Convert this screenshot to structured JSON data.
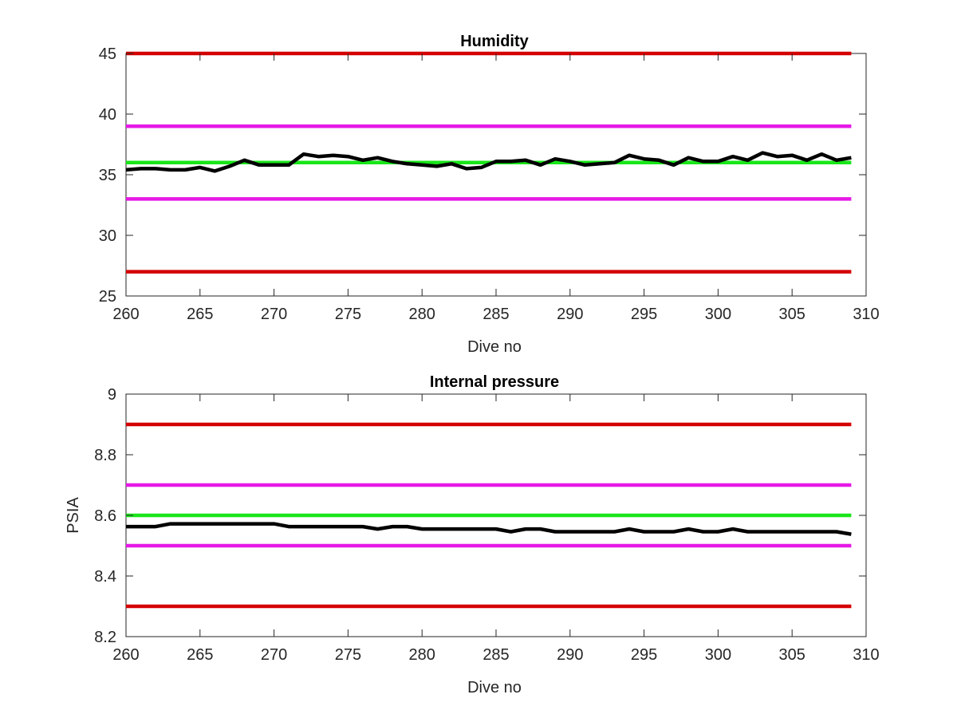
{
  "chart_data": [
    {
      "type": "line",
      "title": "Humidity",
      "xlabel": "Dive no",
      "ylabel": "",
      "xlim": [
        260,
        310
      ],
      "ylim": [
        25,
        45
      ],
      "xticks": [
        260,
        265,
        270,
        275,
        280,
        285,
        290,
        295,
        300,
        305,
        310
      ],
      "yticks": [
        25,
        30,
        35,
        40,
        45
      ],
      "grid": false,
      "legend": "none",
      "thresholds": [
        {
          "y": 45,
          "color": "#d40000"
        },
        {
          "y": 39,
          "color": "#e619e6"
        },
        {
          "y": 36,
          "color": "#19e619"
        },
        {
          "y": 33,
          "color": "#e619e6"
        },
        {
          "y": 27,
          "color": "#d40000"
        }
      ],
      "series": [
        {
          "color": "#000000",
          "x": [
            260,
            261,
            262,
            263,
            264,
            265,
            266,
            267,
            268,
            269,
            270,
            271,
            272,
            273,
            274,
            275,
            276,
            277,
            278,
            279,
            280,
            281,
            282,
            283,
            284,
            285,
            286,
            287,
            288,
            289,
            290,
            291,
            292,
            293,
            294,
            295,
            296,
            297,
            298,
            299,
            300,
            301,
            302,
            303,
            304,
            305,
            306,
            307,
            308,
            309
          ],
          "values": [
            35.4,
            35.5,
            35.5,
            35.4,
            35.4,
            35.6,
            35.3,
            35.7,
            36.2,
            35.8,
            35.8,
            35.8,
            36.7,
            36.5,
            36.6,
            36.5,
            36.2,
            36.4,
            36.1,
            35.9,
            35.8,
            35.7,
            35.9,
            35.5,
            35.6,
            36.1,
            36.1,
            36.2,
            35.8,
            36.3,
            36.1,
            35.8,
            35.9,
            36.0,
            36.6,
            36.3,
            36.2,
            35.8,
            36.4,
            36.1,
            36.1,
            36.5,
            36.2,
            36.8,
            36.5,
            36.6,
            36.2,
            36.7,
            36.2,
            36.4
          ]
        }
      ]
    },
    {
      "type": "line",
      "title": "Internal pressure",
      "xlabel": "Dive no",
      "ylabel": "PSIA",
      "xlim": [
        260,
        310
      ],
      "ylim": [
        8.2,
        9.0
      ],
      "xticks": [
        260,
        265,
        270,
        275,
        280,
        285,
        290,
        295,
        300,
        305,
        310
      ],
      "yticks": [
        8.2,
        8.4,
        8.6,
        8.8,
        9.0
      ],
      "yticklabels": [
        "8.2",
        "8.4",
        "8.6",
        "8.8",
        "9"
      ],
      "grid": false,
      "legend": "none",
      "thresholds": [
        {
          "y": 8.9,
          "color": "#d40000"
        },
        {
          "y": 8.7,
          "color": "#e619e6"
        },
        {
          "y": 8.6,
          "color": "#19e619"
        },
        {
          "y": 8.5,
          "color": "#e619e6"
        },
        {
          "y": 8.3,
          "color": "#d40000"
        }
      ],
      "series": [
        {
          "color": "#000000",
          "x": [
            260,
            261,
            262,
            263,
            264,
            265,
            266,
            267,
            268,
            269,
            270,
            271,
            272,
            273,
            274,
            275,
            276,
            277,
            278,
            279,
            280,
            281,
            282,
            283,
            284,
            285,
            286,
            287,
            288,
            289,
            290,
            291,
            292,
            293,
            294,
            295,
            296,
            297,
            298,
            299,
            300,
            301,
            302,
            303,
            304,
            305,
            306,
            307,
            308,
            309
          ],
          "values": [
            8.563,
            8.563,
            8.563,
            8.572,
            8.572,
            8.572,
            8.572,
            8.572,
            8.572,
            8.572,
            8.572,
            8.563,
            8.563,
            8.563,
            8.563,
            8.563,
            8.563,
            8.555,
            8.563,
            8.563,
            8.555,
            8.555,
            8.555,
            8.555,
            8.555,
            8.555,
            8.546,
            8.555,
            8.555,
            8.546,
            8.546,
            8.546,
            8.546,
            8.546,
            8.555,
            8.546,
            8.546,
            8.546,
            8.555,
            8.546,
            8.546,
            8.555,
            8.546,
            8.546,
            8.546,
            8.546,
            8.546,
            8.546,
            8.546,
            8.538
          ]
        }
      ]
    }
  ]
}
